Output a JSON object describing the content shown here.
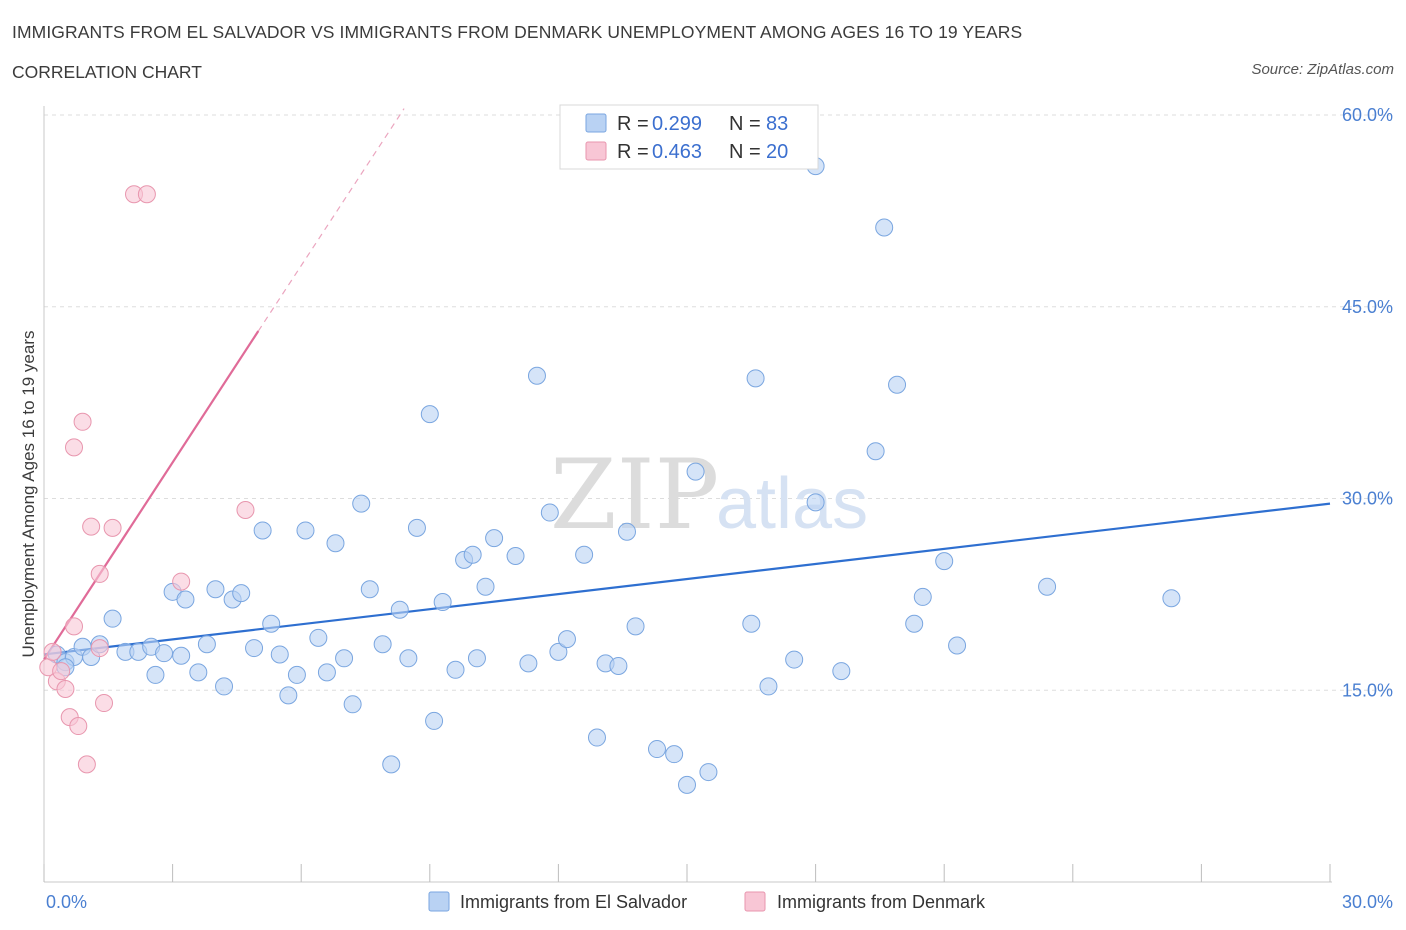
{
  "header": {
    "title": "IMMIGRANTS FROM EL SALVADOR VS IMMIGRANTS FROM DENMARK UNEMPLOYMENT AMONG AGES 16 TO 19 YEARS",
    "subtitle": "CORRELATION CHART",
    "source": "Source: ZipAtlas.com"
  },
  "legend_box": {
    "r_label": "R =",
    "n_label": "N =",
    "series1": {
      "r": "0.299",
      "n": "83"
    },
    "series2": {
      "r": "0.463",
      "n": "20"
    }
  },
  "watermark": {
    "zip": "ZIP",
    "atlas": "atlas"
  },
  "colors": {
    "series1_fill": "#b9d2f3",
    "series1_stroke": "#7aa6e0",
    "series1_line": "#2e6fd0",
    "series2_fill": "#f8c6d5",
    "series2_stroke": "#e896ae",
    "series2_line": "#e06b98",
    "tick_color": "#4a7fd1",
    "grid": "#dddddd"
  },
  "chart_data": {
    "type": "scatter",
    "title": "IMMIGRANTS FROM EL SALVADOR VS IMMIGRANTS FROM DENMARK UNEMPLOYMENT AMONG AGES 16 TO 19 YEARS",
    "xlabel": "",
    "ylabel": "Unemployment Among Ages 16 to 19 years",
    "xlim": [
      0,
      30
    ],
    "ylim": [
      0,
      60
    ],
    "y_tick_labels": [
      "15.0%",
      "30.0%",
      "45.0%",
      "60.0%"
    ],
    "y_tick_values": [
      15,
      30,
      45,
      60
    ],
    "x_tick_labels": [
      "0.0%",
      "30.0%"
    ],
    "x_tick_values": [
      0,
      30
    ],
    "grid": true,
    "legend_position": "bottom",
    "series": [
      {
        "name": "Immigrants from El Salvador",
        "r": 0.299,
        "n": 83,
        "trend": {
          "x": [
            0,
            30
          ],
          "y": [
            17.8,
            29.6
          ]
        },
        "points": [
          [
            0.3,
            17.8
          ],
          [
            0.5,
            17.2
          ],
          [
            0.7,
            17.6
          ],
          [
            0.9,
            18.4
          ],
          [
            1.1,
            17.6
          ],
          [
            1.3,
            18.6
          ],
          [
            1.6,
            20.6
          ],
          [
            1.9,
            18.0
          ],
          [
            2.2,
            18.0
          ],
          [
            2.5,
            18.4
          ],
          [
            2.6,
            16.2
          ],
          [
            2.8,
            17.9
          ],
          [
            3.0,
            22.7
          ],
          [
            3.2,
            17.7
          ],
          [
            3.3,
            22.1
          ],
          [
            3.6,
            16.4
          ],
          [
            3.8,
            18.6
          ],
          [
            4.0,
            22.9
          ],
          [
            4.2,
            15.3
          ],
          [
            4.4,
            22.1
          ],
          [
            4.6,
            22.6
          ],
          [
            4.9,
            18.3
          ],
          [
            5.1,
            27.5
          ],
          [
            5.3,
            20.2
          ],
          [
            5.5,
            17.8
          ],
          [
            5.7,
            14.6
          ],
          [
            5.9,
            16.2
          ],
          [
            6.1,
            27.5
          ],
          [
            6.4,
            19.1
          ],
          [
            6.6,
            16.4
          ],
          [
            6.8,
            26.5
          ],
          [
            7.0,
            17.5
          ],
          [
            7.2,
            13.9
          ],
          [
            7.4,
            29.6
          ],
          [
            7.6,
            22.9
          ],
          [
            7.9,
            18.6
          ],
          [
            8.1,
            9.2
          ],
          [
            8.3,
            21.3
          ],
          [
            8.5,
            17.5
          ],
          [
            8.7,
            27.7
          ],
          [
            9.0,
            36.6
          ],
          [
            9.1,
            12.6
          ],
          [
            9.3,
            21.9
          ],
          [
            9.6,
            16.6
          ],
          [
            9.8,
            25.2
          ],
          [
            10.0,
            25.6
          ],
          [
            10.1,
            17.5
          ],
          [
            10.3,
            23.1
          ],
          [
            10.5,
            26.9
          ],
          [
            11.0,
            25.5
          ],
          [
            11.3,
            17.1
          ],
          [
            11.5,
            39.6
          ],
          [
            11.8,
            28.9
          ],
          [
            12.0,
            18.0
          ],
          [
            12.2,
            19.0
          ],
          [
            12.6,
            25.6
          ],
          [
            12.9,
            11.3
          ],
          [
            13.1,
            17.1
          ],
          [
            13.4,
            16.9
          ],
          [
            13.6,
            27.4
          ],
          [
            13.8,
            20.0
          ],
          [
            14.3,
            10.4
          ],
          [
            14.7,
            10.0
          ],
          [
            15.0,
            7.6
          ],
          [
            15.2,
            32.1
          ],
          [
            15.5,
            8.6
          ],
          [
            16.5,
            20.2
          ],
          [
            16.6,
            39.4
          ],
          [
            16.9,
            15.3
          ],
          [
            17.5,
            17.4
          ],
          [
            18.0,
            29.7
          ],
          [
            18.0,
            56.0
          ],
          [
            18.6,
            16.5
          ],
          [
            19.4,
            33.7
          ],
          [
            19.6,
            51.2
          ],
          [
            19.9,
            38.9
          ],
          [
            20.3,
            20.2
          ],
          [
            20.5,
            22.3
          ],
          [
            21.0,
            25.1
          ],
          [
            21.3,
            18.5
          ],
          [
            23.4,
            23.1
          ],
          [
            26.3,
            22.2
          ],
          [
            0.5,
            16.8
          ]
        ]
      },
      {
        "name": "Immigrants from Denmark",
        "r": 0.463,
        "n": 20,
        "trend": {
          "x": [
            0,
            5
          ],
          "y": [
            17.4,
            43.1
          ]
        },
        "trend_dashed": {
          "x": [
            5,
            8.4
          ],
          "y": [
            43.1,
            60.5
          ]
        },
        "points": [
          [
            0.1,
            16.8
          ],
          [
            0.2,
            18.0
          ],
          [
            0.3,
            15.7
          ],
          [
            0.4,
            16.5
          ],
          [
            0.5,
            15.1
          ],
          [
            0.6,
            12.9
          ],
          [
            0.7,
            20.0
          ],
          [
            0.7,
            34.0
          ],
          [
            0.8,
            12.2
          ],
          [
            0.9,
            36.0
          ],
          [
            1.0,
            9.2
          ],
          [
            1.1,
            27.8
          ],
          [
            1.3,
            18.3
          ],
          [
            1.3,
            24.1
          ],
          [
            1.4,
            14.0
          ],
          [
            1.6,
            27.7
          ],
          [
            2.1,
            53.8
          ],
          [
            2.4,
            53.8
          ],
          [
            3.2,
            23.5
          ],
          [
            4.7,
            29.1
          ]
        ]
      }
    ]
  }
}
